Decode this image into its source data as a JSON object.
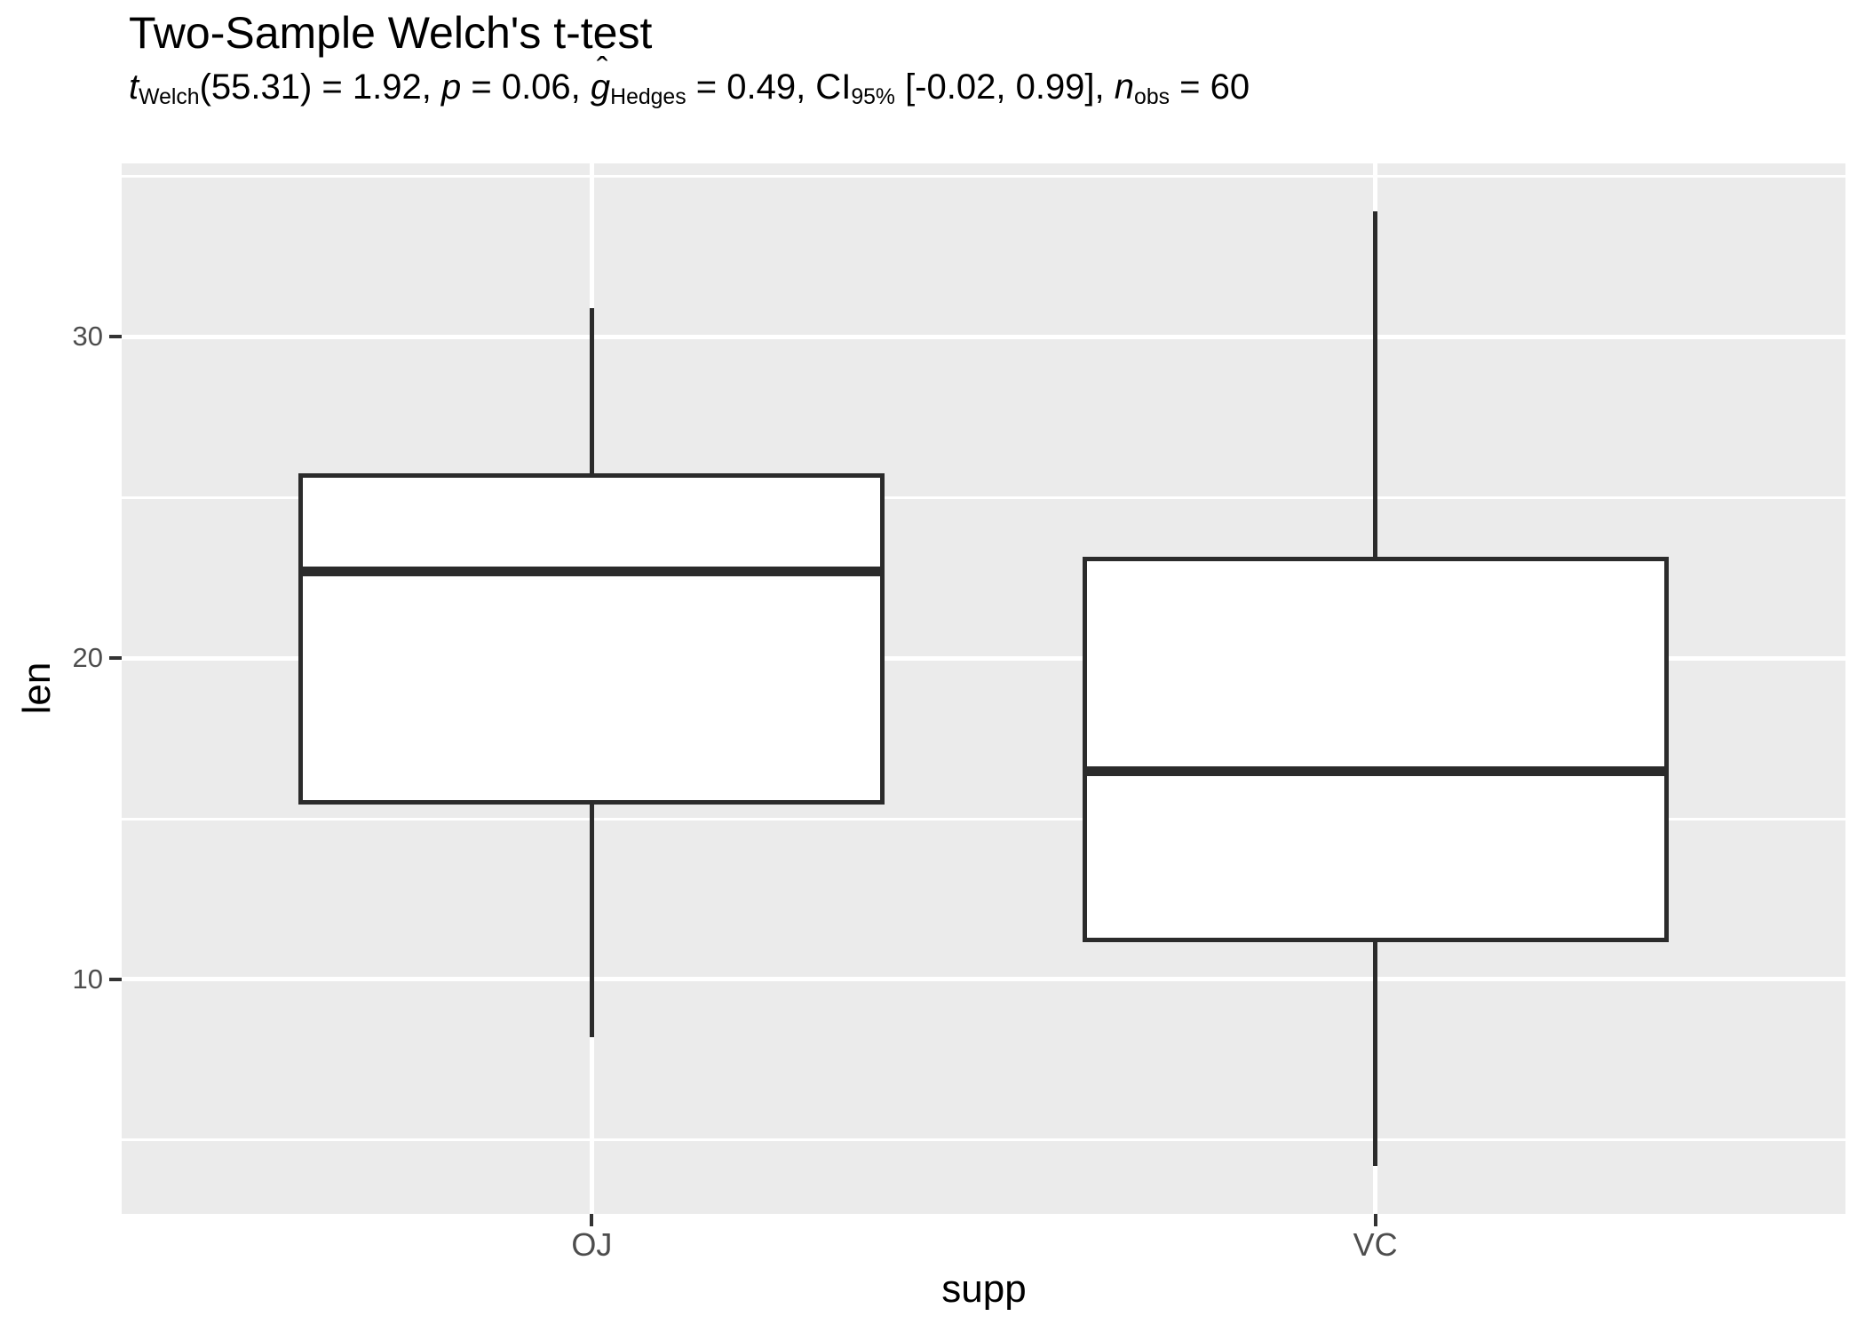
{
  "chart_data": {
    "type": "boxplot",
    "title": "Two-Sample Welch's t-test",
    "subtitle_plain": "t_Welch(55.31) = 1.92, p = 0.06, g_Hedges = 0.49, CI_95% [-0.02, 0.99], n_obs = 60",
    "subtitle_segments": [
      {
        "text": "t",
        "style": "it"
      },
      {
        "text": "Welch",
        "style": "sub"
      },
      {
        "text": "(55.31) = 1.92, ",
        "style": ""
      },
      {
        "text": "p",
        "style": "it"
      },
      {
        "text": " = 0.06, ",
        "style": ""
      },
      {
        "text": "g",
        "style": "hat"
      },
      {
        "text": "Hedges",
        "style": "sub"
      },
      {
        "text": " = 0.49, CI",
        "style": ""
      },
      {
        "text": "95%",
        "style": "sub"
      },
      {
        "text": " [-0.02, 0.99], ",
        "style": ""
      },
      {
        "text": "n",
        "style": "it"
      },
      {
        "text": "obs",
        "style": "sub"
      },
      {
        "text": " = 60",
        "style": ""
      }
    ],
    "xlabel": "supp",
    "ylabel": "len",
    "categories": [
      "OJ",
      "VC"
    ],
    "series": [
      {
        "name": "OJ",
        "whisker_low": 8.2,
        "q1": 15.5,
        "median": 22.7,
        "q3": 25.7,
        "whisker_high": 30.9
      },
      {
        "name": "VC",
        "whisker_low": 4.2,
        "q1": 11.2,
        "median": 16.5,
        "q3": 23.1,
        "whisker_high": 33.9
      }
    ],
    "ylim": [
      2.7,
      35.4
    ],
    "yticks": [
      10,
      20,
      30
    ],
    "yminor_ticks": [
      5,
      15,
      25,
      35
    ],
    "grid": true,
    "legend": "none",
    "colors": {
      "panel_bg": "#EBEBEB",
      "grid": "#FFFFFF",
      "box_stroke": "#2B2B2B",
      "box_fill": "#FFFFFF",
      "axis_text": "#4D4D4D",
      "tick_mark": "#333333",
      "title_text": "#000000"
    }
  }
}
